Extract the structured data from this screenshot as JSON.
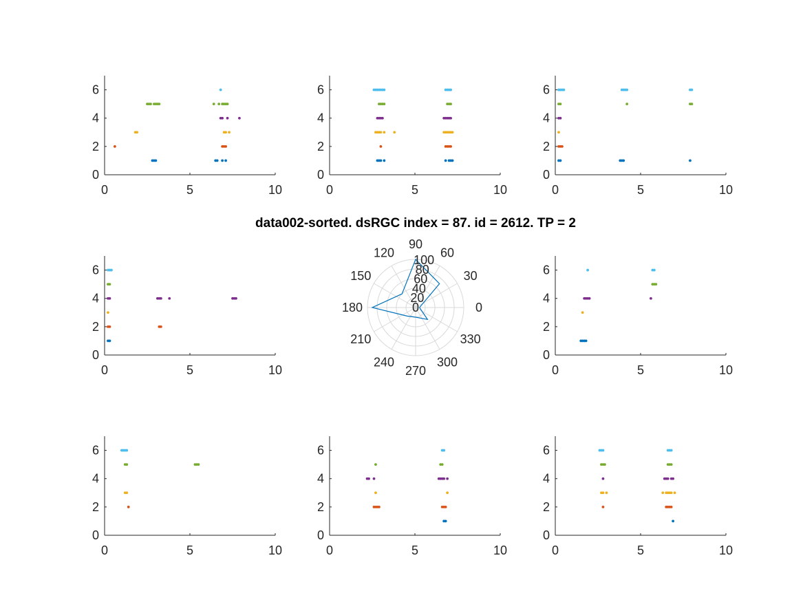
{
  "title": "data002-sorted. dsRGC index = 87. id = 2612. TP = 2",
  "colors": [
    "#0072BD",
    "#D95319",
    "#EDB120",
    "#7E2F8E",
    "#77AC30",
    "#4DBEEE"
  ],
  "chart_data": [
    {
      "type": "scatter",
      "panel": "top-left",
      "xlim": [
        0,
        10
      ],
      "ylim": [
        0,
        7
      ],
      "xticks": [
        "0",
        "5",
        "10"
      ],
      "yticks": [
        "0",
        "2",
        "4",
        "6"
      ],
      "series": [
        {
          "trial": 1,
          "x": [
            2.8,
            2.9,
            3.0,
            6.5,
            6.6,
            6.9,
            7.1
          ]
        },
        {
          "trial": 2,
          "x": [
            0.6,
            6.9,
            7.0,
            7.1
          ]
        },
        {
          "trial": 3,
          "x": [
            1.8,
            1.9,
            7.0,
            7.1,
            7.3
          ]
        },
        {
          "trial": 4,
          "x": [
            6.8,
            6.9,
            7.2,
            7.9
          ]
        },
        {
          "trial": 5,
          "x": [
            2.5,
            2.6,
            2.7,
            2.9,
            3.0,
            3.1,
            3.2,
            6.4,
            6.7,
            6.9,
            7.0,
            7.1,
            7.2
          ]
        },
        {
          "trial": 6,
          "x": [
            6.8
          ]
        }
      ]
    },
    {
      "type": "scatter",
      "panel": "top-center",
      "xlim": [
        0,
        10
      ],
      "ylim": [
        0,
        7
      ],
      "xticks": [
        "0",
        "5",
        "10"
      ],
      "yticks": [
        "0",
        "2",
        "4",
        "6"
      ],
      "series": [
        {
          "trial": 1,
          "x": [
            2.8,
            2.9,
            3.0,
            3.2,
            6.8,
            7.0,
            7.1,
            7.2
          ]
        },
        {
          "trial": 2,
          "x": [
            3.0,
            6.8,
            6.9,
            7.0,
            7.1
          ]
        },
        {
          "trial": 3,
          "x": [
            2.7,
            2.8,
            2.9,
            3.0,
            3.2,
            3.8,
            6.7,
            6.8,
            6.9,
            7.0,
            7.1,
            7.2
          ]
        },
        {
          "trial": 4,
          "x": [
            2.8,
            2.9,
            3.0,
            3.1,
            6.7,
            6.8,
            6.9,
            7.0,
            7.1
          ]
        },
        {
          "trial": 5,
          "x": [
            2.9,
            3.0,
            3.1,
            3.2,
            6.9,
            7.0,
            7.1
          ]
        },
        {
          "trial": 6,
          "x": [
            2.6,
            2.7,
            2.8,
            2.9,
            3.0,
            3.1,
            3.2,
            6.8,
            6.9,
            7.0,
            7.1
          ]
        }
      ]
    },
    {
      "type": "scatter",
      "panel": "top-right",
      "xlim": [
        0,
        10
      ],
      "ylim": [
        0,
        7
      ],
      "xticks": [
        "0",
        "5",
        "10"
      ],
      "yticks": [
        "0",
        "2",
        "4",
        "6"
      ],
      "series": [
        {
          "trial": 1,
          "x": [
            0.2,
            0.3,
            3.8,
            3.9,
            4.0,
            7.9
          ]
        },
        {
          "trial": 2,
          "x": [
            0.2,
            0.3,
            0.4
          ]
        },
        {
          "trial": 3,
          "x": [
            0.2
          ]
        },
        {
          "trial": 4,
          "x": [
            0.2,
            0.3
          ]
        },
        {
          "trial": 5,
          "x": [
            0.2,
            0.3,
            4.2,
            7.9,
            8.0
          ]
        },
        {
          "trial": 6,
          "x": [
            0.2,
            0.3,
            0.4,
            0.5,
            3.9,
            4.0,
            4.1,
            4.2,
            7.9,
            8.0
          ]
        }
      ]
    },
    {
      "type": "scatter",
      "panel": "middle-left",
      "xlim": [
        0,
        10
      ],
      "ylim": [
        0,
        7
      ],
      "xticks": [
        "0",
        "5",
        "10"
      ],
      "yticks": [
        "0",
        "2",
        "4",
        "6"
      ],
      "series": [
        {
          "trial": 1,
          "x": [
            0.2,
            0.3
          ]
        },
        {
          "trial": 2,
          "x": [
            0.2,
            0.3,
            3.2,
            3.3
          ]
        },
        {
          "trial": 3,
          "x": [
            0.2
          ]
        },
        {
          "trial": 4,
          "x": [
            0.2,
            0.3,
            3.1,
            3.2,
            3.3,
            3.8,
            7.5,
            7.6,
            7.7
          ]
        },
        {
          "trial": 5,
          "x": [
            0.2,
            0.3
          ]
        },
        {
          "trial": 6,
          "x": [
            0.2,
            0.3,
            0.4
          ]
        }
      ]
    },
    {
      "type": "polar",
      "panel": "middle-center",
      "theta_deg": [
        0,
        45,
        90,
        135,
        180,
        225,
        270,
        315,
        360
      ],
      "r": [
        8,
        70,
        100,
        40,
        90,
        25,
        20,
        35,
        8
      ],
      "rlim": [
        0,
        100
      ],
      "r_ticks": [
        "0",
        "20",
        "40",
        "60",
        "80",
        "100"
      ],
      "theta_ticks": [
        "0",
        "30",
        "60",
        "90",
        "120",
        "150",
        "180",
        "210",
        "240",
        "270",
        "300",
        "330"
      ]
    },
    {
      "type": "scatter",
      "panel": "middle-right",
      "xlim": [
        0,
        10
      ],
      "ylim": [
        0,
        7
      ],
      "xticks": [
        "0",
        "5",
        "10"
      ],
      "yticks": [
        "0",
        "2",
        "4",
        "6"
      ],
      "series": [
        {
          "trial": 1,
          "x": [
            1.5,
            1.6,
            1.7,
            1.8
          ]
        },
        {
          "trial": 2,
          "x": []
        },
        {
          "trial": 3,
          "x": [
            1.6
          ]
        },
        {
          "trial": 4,
          "x": [
            1.7,
            1.8,
            1.9,
            2.0,
            5.6
          ]
        },
        {
          "trial": 5,
          "x": [
            5.7,
            5.8,
            5.9
          ]
        },
        {
          "trial": 6,
          "x": [
            1.9,
            5.7,
            5.8
          ]
        }
      ]
    },
    {
      "type": "scatter",
      "panel": "bottom-left",
      "xlim": [
        0,
        10
      ],
      "ylim": [
        0,
        7
      ],
      "xticks": [
        "0",
        "5",
        "10"
      ],
      "yticks": [
        "0",
        "2",
        "4",
        "6"
      ],
      "series": [
        {
          "trial": 1,
          "x": []
        },
        {
          "trial": 2,
          "x": [
            1.4
          ]
        },
        {
          "trial": 3,
          "x": [
            1.2,
            1.3
          ]
        },
        {
          "trial": 4,
          "x": []
        },
        {
          "trial": 5,
          "x": [
            1.2,
            1.3,
            5.3,
            5.4,
            5.5
          ]
        },
        {
          "trial": 6,
          "x": [
            1.0,
            1.1,
            1.2,
            1.3
          ]
        }
      ]
    },
    {
      "type": "scatter",
      "panel": "bottom-center",
      "xlim": [
        0,
        10
      ],
      "ylim": [
        0,
        7
      ],
      "xticks": [
        "0",
        "5",
        "10"
      ],
      "yticks": [
        "0",
        "2",
        "4",
        "6"
      ],
      "series": [
        {
          "trial": 1,
          "x": [
            6.7,
            6.8
          ]
        },
        {
          "trial": 2,
          "x": [
            2.6,
            2.7,
            2.8,
            2.9,
            6.6,
            6.7,
            6.8
          ]
        },
        {
          "trial": 3,
          "x": [
            2.7,
            6.9
          ]
        },
        {
          "trial": 4,
          "x": [
            2.2,
            2.3,
            2.6,
            6.4,
            6.5,
            6.6,
            6.7,
            6.9
          ]
        },
        {
          "trial": 5,
          "x": [
            2.7,
            6.5,
            6.6
          ]
        },
        {
          "trial": 6,
          "x": [
            6.6,
            6.7
          ]
        }
      ]
    },
    {
      "type": "scatter",
      "panel": "bottom-right",
      "xlim": [
        0,
        10
      ],
      "ylim": [
        0,
        7
      ],
      "xticks": [
        "0",
        "5",
        "10"
      ],
      "yticks": [
        "0",
        "2",
        "4",
        "6"
      ],
      "series": [
        {
          "trial": 1,
          "x": [
            6.9
          ]
        },
        {
          "trial": 2,
          "x": [
            2.8,
            6.5,
            6.6,
            6.7,
            6.8
          ]
        },
        {
          "trial": 3,
          "x": [
            2.7,
            2.8,
            3.0,
            6.3,
            6.5,
            6.6,
            6.7,
            6.8,
            7.0
          ]
        },
        {
          "trial": 4,
          "x": [
            2.8,
            6.4,
            6.5,
            6.6,
            6.8,
            6.9
          ]
        },
        {
          "trial": 5,
          "x": [
            2.7,
            2.8,
            2.9,
            6.6,
            6.7,
            6.8
          ]
        },
        {
          "trial": 6,
          "x": [
            2.6,
            2.7,
            2.8,
            6.6,
            6.7,
            6.8
          ]
        }
      ]
    }
  ]
}
